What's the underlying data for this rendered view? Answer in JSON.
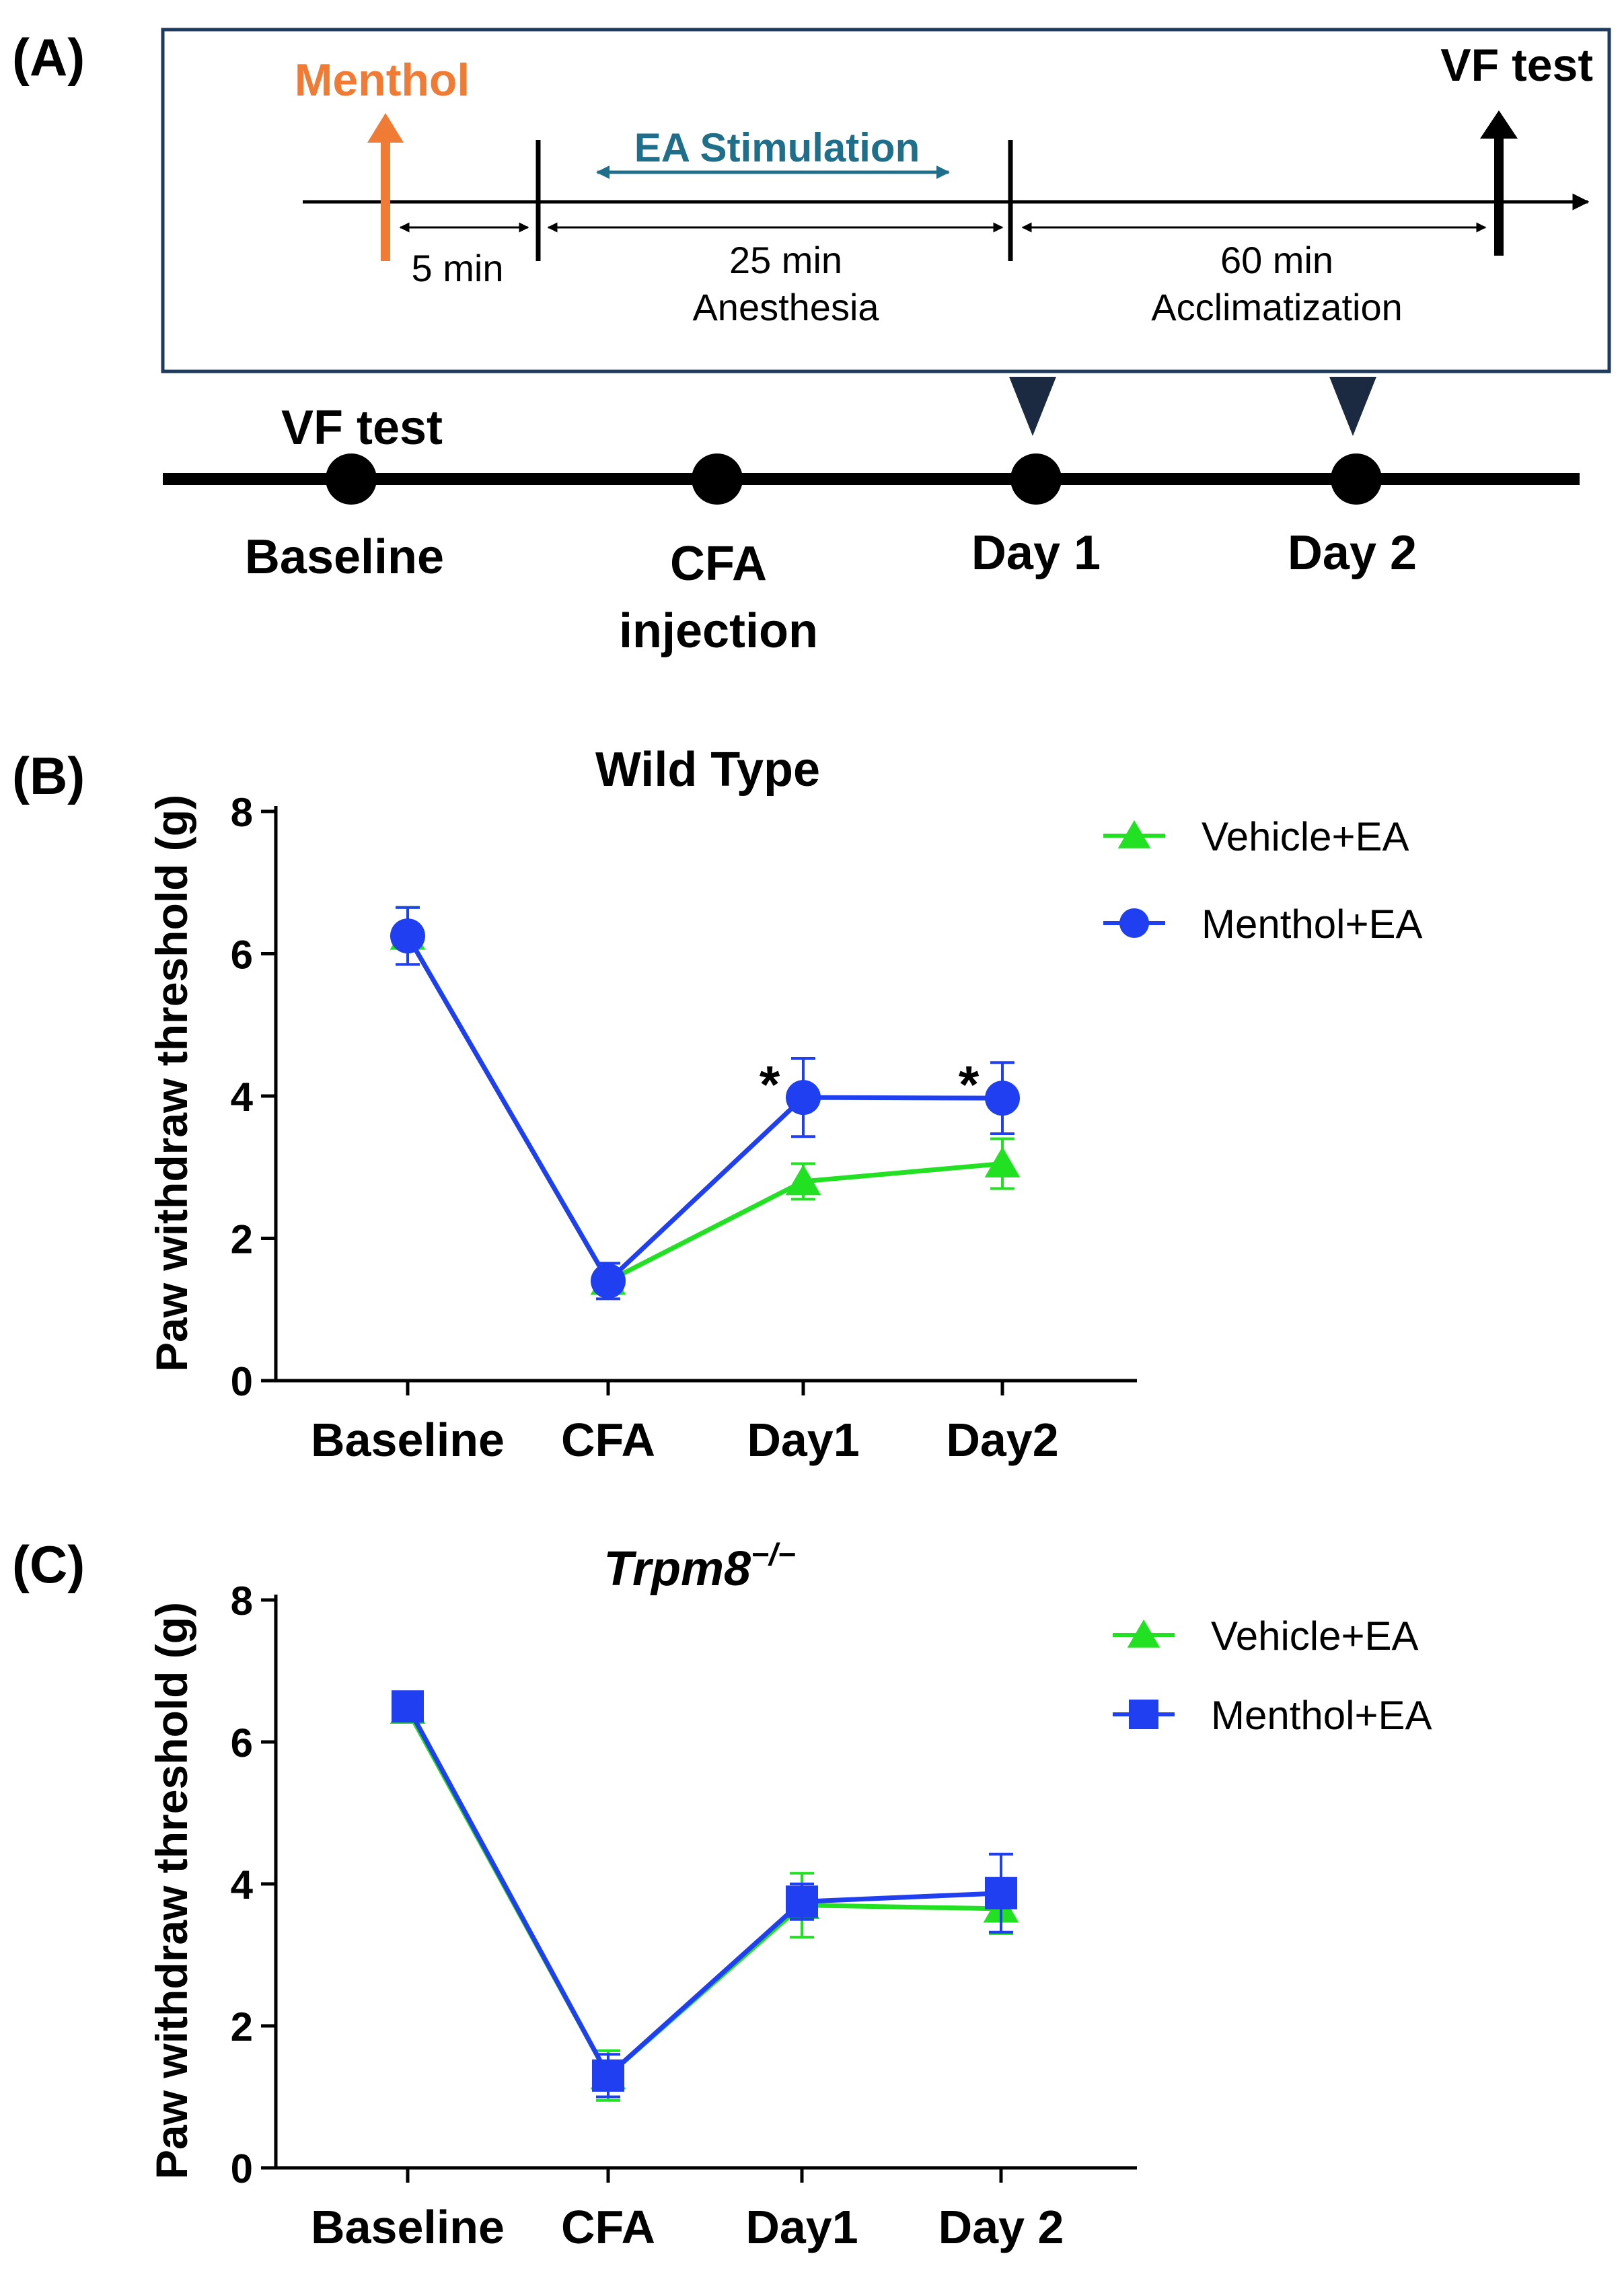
{
  "panel_a": {
    "label": "(A)",
    "protocol": {
      "menthol_label": "Menthol",
      "vf_test_label": "VF test",
      "ea_label": "EA Stimulation",
      "interval_1": "5 min",
      "interval_2_line1": "25 min",
      "interval_2_line2": "Anesthesia",
      "interval_3_line1": "60 min",
      "interval_3_line2": "Acclimatization"
    },
    "timeline": {
      "vf_test_label": "VF test",
      "points": [
        {
          "line1": "Baseline",
          "line2": ""
        },
        {
          "line1": "CFA",
          "line2": "injection"
        },
        {
          "line1": "Day 1",
          "line2": ""
        },
        {
          "line1": "Day 2",
          "line2": ""
        }
      ]
    },
    "colors": {
      "menthol": "#f07b35",
      "ea": "#1f6f8b",
      "frame": "#1f3a5f",
      "marker": "#1b2a40"
    }
  },
  "chart_data": [
    {
      "panel_label": "(B)",
      "type": "line",
      "title": "Wild Type",
      "title_super": "",
      "xlabel": "",
      "ylabel": "Paw withdraw threshold (g)",
      "ylim": [
        0,
        8
      ],
      "yticks": [
        0,
        2,
        4,
        6,
        8
      ],
      "categories": [
        "Baseline",
        "CFA",
        "Day1",
        "Day2"
      ],
      "series": [
        {
          "name": "Vehicle+EA",
          "marker": "triangle",
          "color": "#22e022",
          "values": [
            6.25,
            1.4,
            2.8,
            3.05
          ],
          "errors": [
            0.4,
            0.15,
            0.25,
            0.35
          ]
        },
        {
          "name": "Menthol+EA",
          "marker": "circle",
          "color": "#1f3ff0",
          "values": [
            6.25,
            1.4,
            3.98,
            3.97
          ],
          "errors": [
            0.4,
            0.25,
            0.55,
            0.5
          ]
        }
      ],
      "annotations": [
        {
          "text": "*",
          "category": "Day1",
          "y": 4.1
        },
        {
          "text": "*",
          "category": "Day2",
          "y": 4.1
        }
      ]
    },
    {
      "panel_label": "(C)",
      "type": "line",
      "title": "Trpm8",
      "title_super": "−/−",
      "xlabel": "",
      "ylabel": "Paw withdraw threshold (g)",
      "ylim": [
        0,
        8
      ],
      "yticks": [
        0,
        2,
        4,
        6,
        8
      ],
      "categories": [
        "Baseline",
        "CFA",
        "Day1",
        "Day 2"
      ],
      "series": [
        {
          "name": "Vehicle+EA",
          "marker": "triangle",
          "color": "#22e022",
          "values": [
            6.45,
            1.3,
            3.7,
            3.65
          ],
          "errors": [
            0.15,
            0.35,
            0.45,
            0.35
          ]
        },
        {
          "name": "Menthol+EA",
          "marker": "square",
          "color": "#1f3ff0",
          "values": [
            6.5,
            1.3,
            3.75,
            3.87
          ],
          "errors": [
            0.2,
            0.3,
            0.25,
            0.55
          ]
        }
      ],
      "annotations": []
    }
  ]
}
